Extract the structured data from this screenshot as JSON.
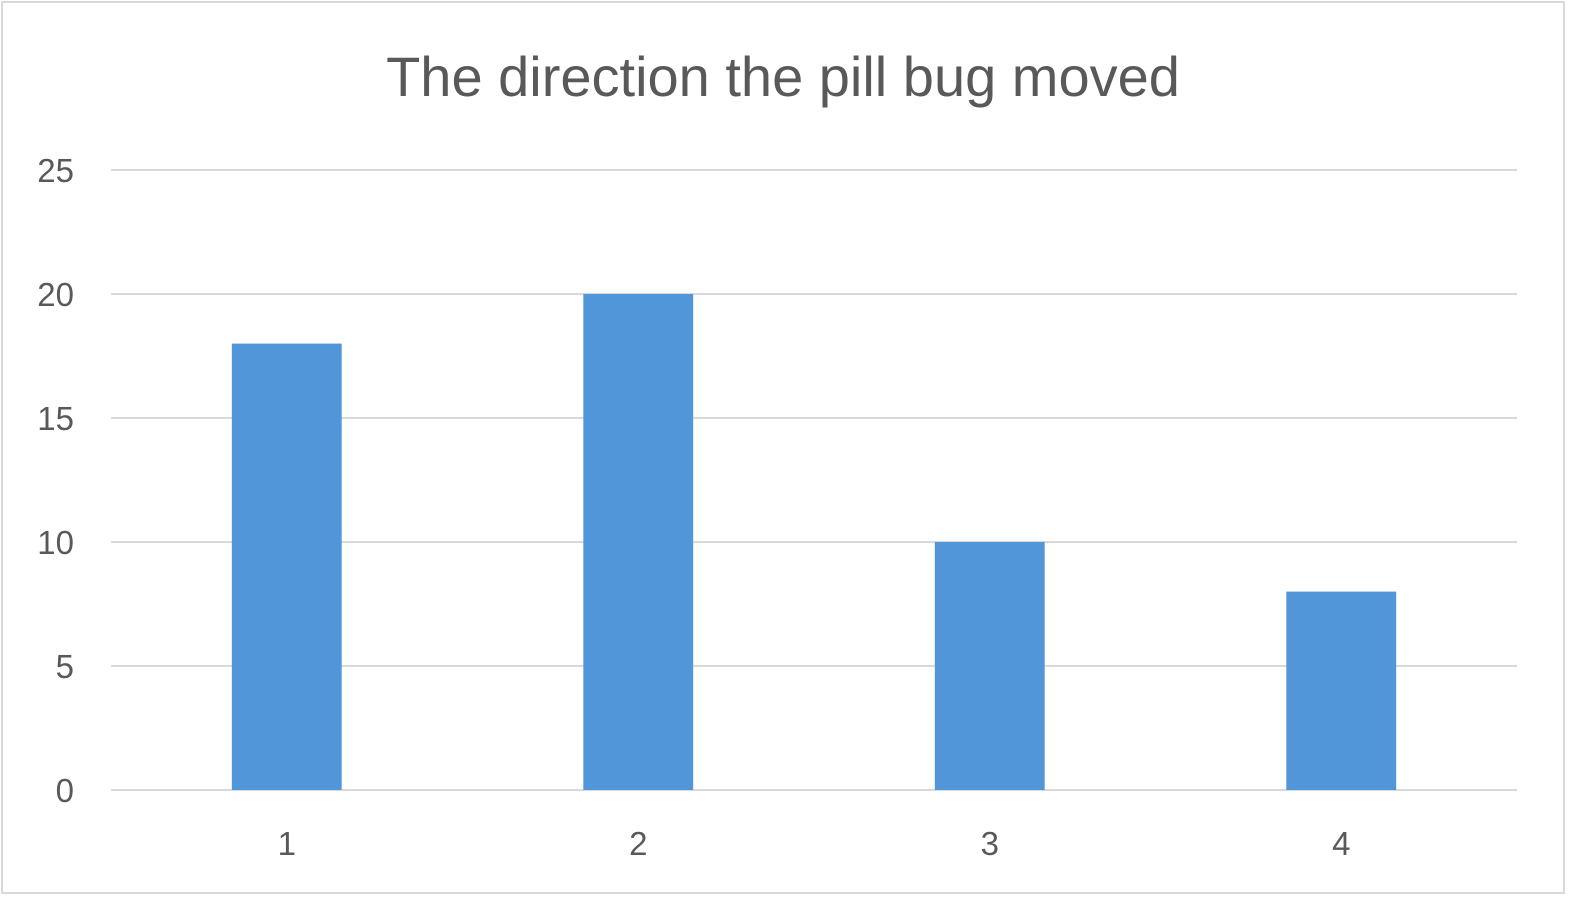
{
  "chart_data": {
    "type": "bar",
    "title": "The direction the pill bug moved",
    "xlabel": "",
    "ylabel": "",
    "categories": [
      "1",
      "2",
      "3",
      "4"
    ],
    "values": [
      18,
      20,
      10,
      8
    ],
    "ylim": [
      0,
      25
    ],
    "yticks": [
      "0",
      "5",
      "10",
      "15",
      "20",
      "25"
    ],
    "grid": true,
    "legend": "none",
    "bar_color": "#5096d9",
    "grid_color": "#d9d9d9"
  }
}
